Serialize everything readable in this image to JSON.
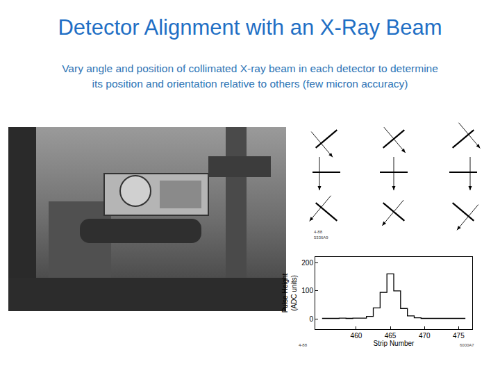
{
  "slide": {
    "title": "Detector Alignment with an X-Ray Beam",
    "subtitle": [
      "Vary angle and position of collimated X-ray beam in each detector to determine",
      "its position and orientation relative to others (few micron accuracy)"
    ],
    "figure_codes": [
      "4-88",
      "5336A9",
      "4-88",
      "6000A7"
    ]
  },
  "chart_data": {
    "type": "line",
    "line_style": "step",
    "color": "#000000",
    "grid": false,
    "x_label": "Strip Number",
    "y_label": "Pulse Height (ADC units)",
    "x": [
      455,
      456,
      457,
      458,
      459,
      460,
      461,
      462,
      463,
      464,
      465,
      466,
      467,
      468,
      469,
      470,
      471,
      472,
      473,
      474,
      475,
      476
    ],
    "values": [
      3,
      3,
      3,
      4,
      3,
      4,
      4,
      10,
      40,
      95,
      160,
      100,
      38,
      12,
      5,
      3,
      3,
      3,
      3,
      3,
      3,
      3
    ],
    "xlim": [
      454,
      477
    ],
    "xticks": [
      460,
      465,
      470,
      475
    ],
    "ylim": [
      -35,
      220
    ],
    "yticks": [
      0,
      100,
      200
    ]
  }
}
